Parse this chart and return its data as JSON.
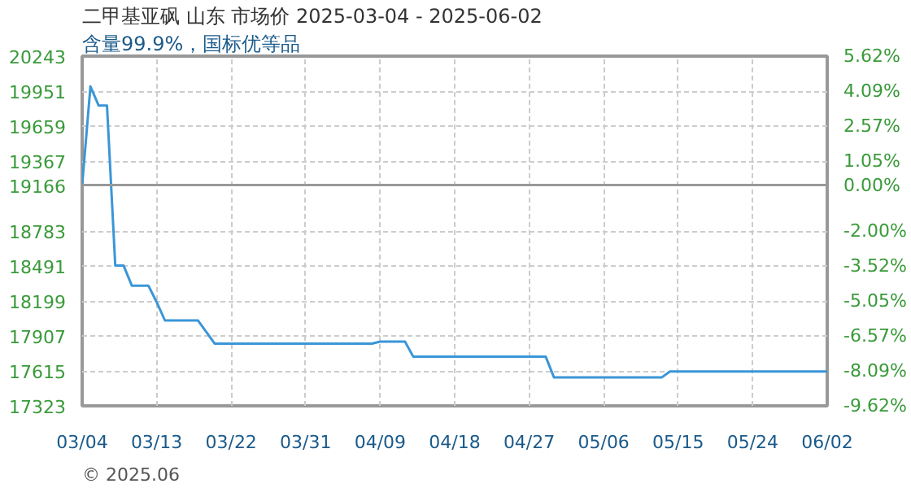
{
  "chart_data": {
    "type": "line",
    "title": "二甲基亚砜 山东 市场价 2025-03-04 - 2025-06-02",
    "subtitle": "含量99.9%，国标优等品",
    "annotations": [
      "© 2025.06"
    ],
    "x": [
      "2025-03-04",
      "2025-03-05",
      "2025-03-06",
      "2025-03-07",
      "2025-03-08",
      "2025-03-09",
      "2025-03-10",
      "2025-03-12",
      "2025-03-13",
      "2025-03-14",
      "2025-03-18",
      "2025-03-20",
      "2025-04-08",
      "2025-04-09",
      "2025-04-12",
      "2025-04-13",
      "2025-04-29",
      "2025-04-30",
      "2025-05-13",
      "2025-05-14",
      "2025-06-02"
    ],
    "series": [
      {
        "color": "#3a96d8",
        "values": [
          19166,
          19990,
          19830,
          19830,
          18495,
          18495,
          18327,
          18327,
          18189,
          18036,
          18036,
          17843,
          17843,
          17860,
          17860,
          17733,
          17733,
          17560,
          17560,
          17610,
          17610
        ]
      }
    ],
    "xlim": [
      "2025-03-04",
      "2025-06-02"
    ],
    "xticks": [
      {
        "value": "2025-03-04",
        "label": "03/04"
      },
      {
        "value": "2025-03-13",
        "label": "03/13"
      },
      {
        "value": "2025-03-22",
        "label": "03/22"
      },
      {
        "value": "2025-03-31",
        "label": "03/31"
      },
      {
        "value": "2025-04-09",
        "label": "04/09"
      },
      {
        "value": "2025-04-18",
        "label": "04/18"
      },
      {
        "value": "2025-04-27",
        "label": "04/27"
      },
      {
        "value": "2025-05-06",
        "label": "05/06"
      },
      {
        "value": "2025-05-15",
        "label": "05/15"
      },
      {
        "value": "2025-05-24",
        "label": "05/24"
      },
      {
        "value": "2025-06-02",
        "label": "06/02"
      }
    ],
    "ylim": [
      17323,
      20243
    ],
    "yticks": [
      20243,
      19951,
      19659,
      19367,
      19166,
      18783,
      18491,
      18199,
      17907,
      17615,
      17323
    ],
    "y2lim": [
      -9.62,
      5.62
    ],
    "y2ticks": [
      {
        "value": 5.62,
        "label": "5.62%"
      },
      {
        "value": 4.09,
        "label": "4.09%"
      },
      {
        "value": 2.57,
        "label": "2.57%"
      },
      {
        "value": 1.05,
        "label": "1.05%"
      },
      {
        "value": 0,
        "label": "0.00%"
      },
      {
        "value": -2.0,
        "label": "-2.00%"
      },
      {
        "value": -3.52,
        "label": "-3.52%"
      },
      {
        "value": -5.05,
        "label": "-5.05%"
      },
      {
        "value": -6.57,
        "label": "-6.57%"
      },
      {
        "value": -8.09,
        "label": "-8.09%"
      },
      {
        "value": -9.62,
        "label": "-9.62%"
      }
    ],
    "ref_lines": [
      {
        "axis": "y",
        "value": 19166,
        "color": "#999999",
        "line_style": "solid"
      }
    ],
    "grid": true,
    "marker": "none",
    "line_style": "solid"
  }
}
